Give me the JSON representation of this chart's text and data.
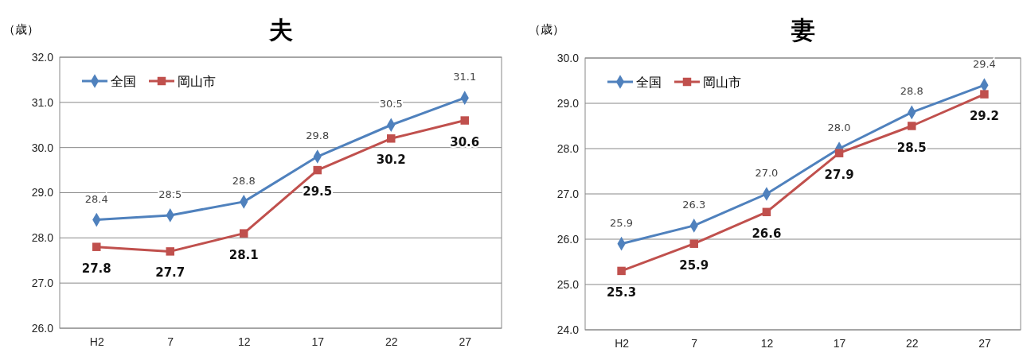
{
  "chart_data": [
    {
      "type": "line",
      "title": "夫",
      "ylabel": "（歳）",
      "categories": [
        "H2",
        "7",
        "12",
        "17",
        "22",
        "27"
      ],
      "ylim": [
        26,
        32
      ],
      "yticks": [
        {
          "value": 26,
          "label": "26.0"
        },
        {
          "value": 27,
          "label": "27.0"
        },
        {
          "value": 28,
          "label": "28.0"
        },
        {
          "value": 29,
          "label": "29.0"
        },
        {
          "value": 30,
          "label": "30.0"
        },
        {
          "value": 31,
          "label": "31.0"
        },
        {
          "value": 32,
          "label": "32.0"
        }
      ],
      "grid": "y",
      "legend": "top left",
      "series": [
        {
          "name": "全国",
          "color": "#4f81bd",
          "marker": "diamond",
          "values": [
            28.4,
            28.5,
            28.8,
            29.8,
            30.5,
            31.1
          ],
          "value_labels": [
            "28.4",
            "28.5",
            "28.8",
            "29.8",
            "30.5",
            "31.1"
          ]
        },
        {
          "name": "岡山市",
          "color": "#c0504d",
          "marker": "square",
          "values": [
            27.8,
            27.7,
            28.1,
            29.5,
            30.2,
            30.6
          ],
          "value_labels": [
            "27.8",
            "27.7",
            "28.1",
            "29.5",
            "30.2",
            "30.6"
          ]
        }
      ]
    },
    {
      "type": "line",
      "title": "妻",
      "ylabel": "（歳）",
      "categories": [
        "H2",
        "7",
        "12",
        "17",
        "22",
        "27"
      ],
      "ylim": [
        24,
        30
      ],
      "yticks": [
        {
          "value": 24,
          "label": "24.0"
        },
        {
          "value": 25,
          "label": "25.0"
        },
        {
          "value": 26,
          "label": "26.0"
        },
        {
          "value": 27,
          "label": "27.0"
        },
        {
          "value": 28,
          "label": "28.0"
        },
        {
          "value": 29,
          "label": "29.0"
        },
        {
          "value": 30,
          "label": "30.0"
        }
      ],
      "grid": "y",
      "legend": "top left",
      "series": [
        {
          "name": "全国",
          "color": "#4f81bd",
          "marker": "diamond",
          "values": [
            25.9,
            26.3,
            27.0,
            28.0,
            28.8,
            29.4
          ],
          "value_labels": [
            "25.9",
            "26.3",
            "27.0",
            "28.0",
            "28.8",
            "29.4"
          ]
        },
        {
          "name": "岡山市",
          "color": "#c0504d",
          "marker": "square",
          "values": [
            25.3,
            25.9,
            26.6,
            27.9,
            28.5,
            29.2
          ],
          "value_labels": [
            "25.3",
            "25.9",
            "26.6",
            "27.9",
            "28.5",
            "29.2"
          ]
        }
      ]
    }
  ]
}
